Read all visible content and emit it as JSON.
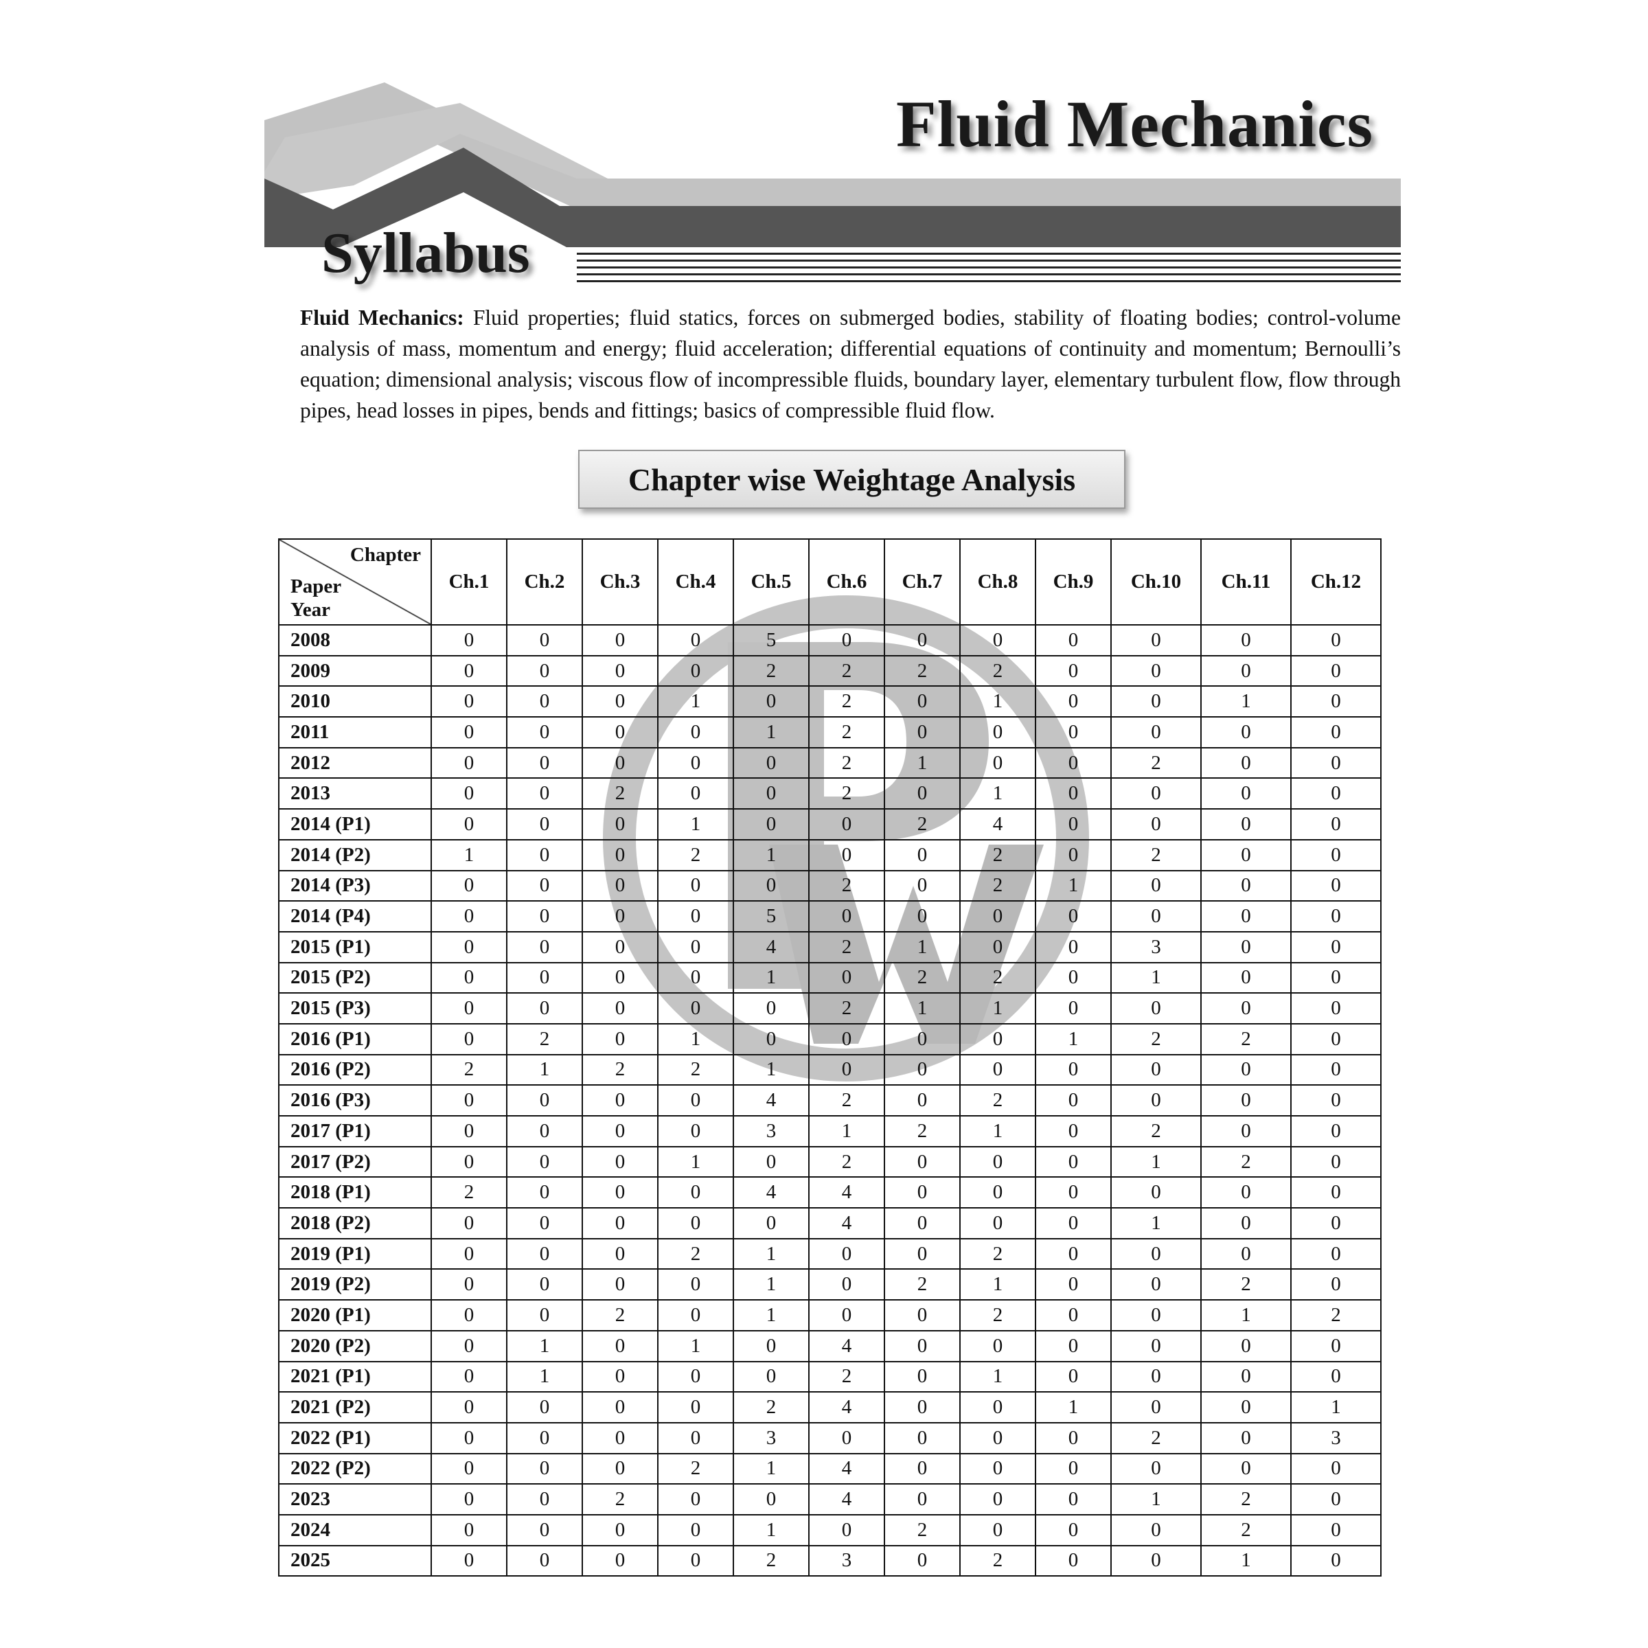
{
  "header": {
    "title": "Fluid Mechanics",
    "section": "Syllabus"
  },
  "syllabus": {
    "lead": "Fluid Mechanics:",
    "text": " Fluid properties; fluid statics, forces on submerged bodies, stability of floating bodies; control-volume analysis of mass, momentum and energy; fluid acceleration; differential equations of continuity and momentum; Bernoulli’s equation; dimensional analysis; viscous flow of incompressible fluids, boundary layer, elementary turbulent flow, flow through pipes, head losses in pipes, bends and fittings; basics of compressible fluid flow."
  },
  "analysis_heading": "Chapter wise Weightage Analysis",
  "watermark": {
    "text": "PW"
  },
  "table": {
    "corner_top": "Chapter",
    "corner_bottom": "Paper Year",
    "columns": [
      "Ch.1",
      "Ch.2",
      "Ch.3",
      "Ch.4",
      "Ch.5",
      "Ch.6",
      "Ch.7",
      "Ch.8",
      "Ch.9",
      "Ch.10",
      "Ch.11",
      "Ch.12"
    ],
    "rows": [
      {
        "year": "2008",
        "values": [
          0,
          0,
          0,
          0,
          5,
          0,
          0,
          0,
          0,
          0,
          0,
          0
        ]
      },
      {
        "year": "2009",
        "values": [
          0,
          0,
          0,
          0,
          2,
          2,
          2,
          2,
          0,
          0,
          0,
          0
        ]
      },
      {
        "year": "2010",
        "values": [
          0,
          0,
          0,
          1,
          0,
          2,
          0,
          1,
          0,
          0,
          1,
          0
        ]
      },
      {
        "year": "2011",
        "values": [
          0,
          0,
          0,
          0,
          1,
          2,
          0,
          0,
          0,
          0,
          0,
          0
        ]
      },
      {
        "year": "2012",
        "values": [
          0,
          0,
          0,
          0,
          0,
          2,
          1,
          0,
          0,
          2,
          0,
          0
        ]
      },
      {
        "year": "2013",
        "values": [
          0,
          0,
          2,
          0,
          0,
          2,
          0,
          1,
          0,
          0,
          0,
          0
        ]
      },
      {
        "year": "2014 (P1)",
        "values": [
          0,
          0,
          0,
          1,
          0,
          0,
          2,
          4,
          0,
          0,
          0,
          0
        ]
      },
      {
        "year": "2014 (P2)",
        "values": [
          1,
          0,
          0,
          2,
          1,
          0,
          0,
          2,
          0,
          2,
          0,
          0
        ]
      },
      {
        "year": "2014 (P3)",
        "values": [
          0,
          0,
          0,
          0,
          0,
          2,
          0,
          2,
          1,
          0,
          0,
          0
        ]
      },
      {
        "year": "2014 (P4)",
        "values": [
          0,
          0,
          0,
          0,
          5,
          0,
          0,
          0,
          0,
          0,
          0,
          0
        ]
      },
      {
        "year": "2015 (P1)",
        "values": [
          0,
          0,
          0,
          0,
          4,
          2,
          1,
          0,
          0,
          3,
          0,
          0
        ]
      },
      {
        "year": "2015 (P2)",
        "values": [
          0,
          0,
          0,
          0,
          1,
          0,
          2,
          2,
          0,
          1,
          0,
          0
        ]
      },
      {
        "year": "2015 (P3)",
        "values": [
          0,
          0,
          0,
          0,
          0,
          2,
          1,
          1,
          0,
          0,
          0,
          0
        ]
      },
      {
        "year": "2016 (P1)",
        "values": [
          0,
          2,
          0,
          1,
          0,
          0,
          0,
          0,
          1,
          2,
          2,
          0
        ]
      },
      {
        "year": "2016 (P2)",
        "values": [
          2,
          1,
          2,
          2,
          1,
          0,
          0,
          0,
          0,
          0,
          0,
          0
        ]
      },
      {
        "year": "2016 (P3)",
        "values": [
          0,
          0,
          0,
          0,
          4,
          2,
          0,
          2,
          0,
          0,
          0,
          0
        ]
      },
      {
        "year": "2017 (P1)",
        "values": [
          0,
          0,
          0,
          0,
          3,
          1,
          2,
          1,
          0,
          2,
          0,
          0
        ]
      },
      {
        "year": "2017 (P2)",
        "values": [
          0,
          0,
          0,
          1,
          0,
          2,
          0,
          0,
          0,
          1,
          2,
          0
        ]
      },
      {
        "year": "2018 (P1)",
        "values": [
          2,
          0,
          0,
          0,
          4,
          4,
          0,
          0,
          0,
          0,
          0,
          0
        ]
      },
      {
        "year": "2018 (P2)",
        "values": [
          0,
          0,
          0,
          0,
          0,
          4,
          0,
          0,
          0,
          1,
          0,
          0
        ]
      },
      {
        "year": "2019 (P1)",
        "values": [
          0,
          0,
          0,
          2,
          1,
          0,
          0,
          2,
          0,
          0,
          0,
          0
        ]
      },
      {
        "year": "2019 (P2)",
        "values": [
          0,
          0,
          0,
          0,
          1,
          0,
          2,
          1,
          0,
          0,
          2,
          0
        ]
      },
      {
        "year": "2020 (P1)",
        "values": [
          0,
          0,
          2,
          0,
          1,
          0,
          0,
          2,
          0,
          0,
          1,
          2
        ]
      },
      {
        "year": "2020 (P2)",
        "values": [
          0,
          1,
          0,
          1,
          0,
          4,
          0,
          0,
          0,
          0,
          0,
          0
        ]
      },
      {
        "year": "2021 (P1)",
        "values": [
          0,
          1,
          0,
          0,
          0,
          2,
          0,
          1,
          0,
          0,
          0,
          0
        ]
      },
      {
        "year": "2021 (P2)",
        "values": [
          0,
          0,
          0,
          0,
          2,
          4,
          0,
          0,
          1,
          0,
          0,
          1
        ]
      },
      {
        "year": "2022 (P1)",
        "values": [
          0,
          0,
          0,
          0,
          3,
          0,
          0,
          0,
          0,
          2,
          0,
          3
        ]
      },
      {
        "year": "2022 (P2)",
        "values": [
          0,
          0,
          0,
          2,
          1,
          4,
          0,
          0,
          0,
          0,
          0,
          0
        ]
      },
      {
        "year": "2023",
        "values": [
          0,
          0,
          2,
          0,
          0,
          4,
          0,
          0,
          0,
          1,
          2,
          0
        ]
      },
      {
        "year": "2024",
        "values": [
          0,
          0,
          0,
          0,
          1,
          0,
          2,
          0,
          0,
          0,
          2,
          0
        ]
      },
      {
        "year": "2025",
        "values": [
          0,
          0,
          0,
          0,
          2,
          3,
          0,
          2,
          0,
          0,
          1,
          0
        ]
      }
    ]
  }
}
